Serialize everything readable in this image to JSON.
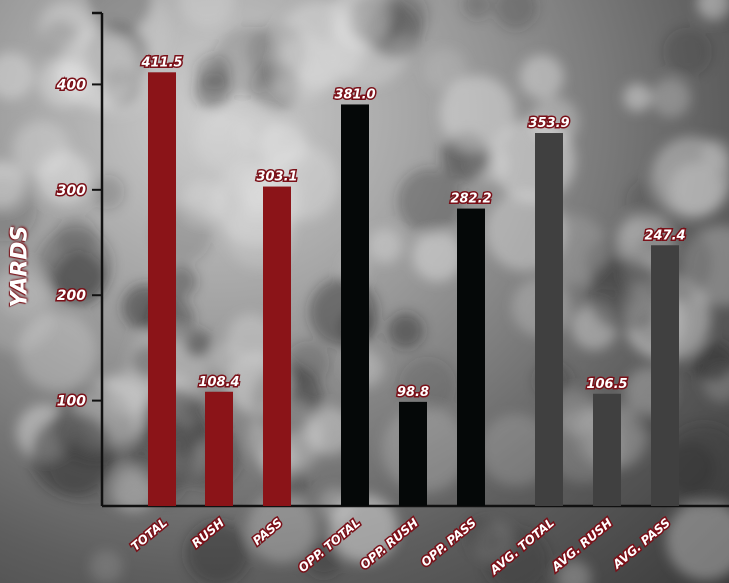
{
  "chart_data": {
    "type": "bar",
    "ylabel": "YARDS",
    "categories": [
      "TOTAL",
      "RUSH",
      "PASS",
      "OPP. TOTAL",
      "OPP. RUSH",
      "OPP. PASS",
      "AVG. TOTAL",
      "AVG.  RUSH",
      "AVG. PASS"
    ],
    "values": [
      411.5,
      108.4,
      303.1,
      381.0,
      98.8,
      282.2,
      353.9,
      106.5,
      247.4
    ],
    "value_labels": [
      "411.5",
      "108.4",
      "303.1",
      "381.0",
      "98.8",
      "282.2",
      "353.9",
      "106.5",
      "247.4"
    ],
    "bar_colors": [
      "#8b1418",
      "#8b1418",
      "#8b1418",
      "#050808",
      "#050808",
      "#050808",
      "#404040",
      "#404040",
      "#404040"
    ],
    "yticks": [
      100,
      200,
      300,
      400
    ],
    "ylim": [
      0,
      445
    ],
    "grid": false,
    "legend": "none"
  },
  "colors": {
    "label_stroke": "#7a1018",
    "axis": "#111111"
  }
}
